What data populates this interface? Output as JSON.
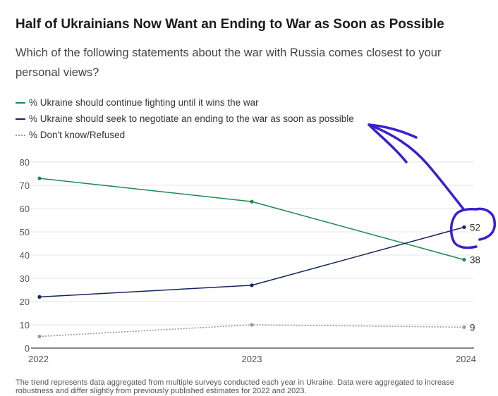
{
  "header": {
    "title": "Half of Ukrainians Now Want an Ending to War as Soon as Possible",
    "subtitle": "Which of the following statements about the war with Russia comes closest to your personal views?"
  },
  "footnote": "The trend represents data aggregated from multiple surveys conducted each year in Ukraine. Data were aggregated to increase robustness and differ slightly from previously published estimates for 2022 and 2023.",
  "chart_data": {
    "type": "line",
    "title": "Half of Ukrainians Now Want an Ending to War as Soon as Possible",
    "subtitle": "Which of the following statements about the war with Russia comes closest to your personal views?",
    "xlabel": "",
    "ylabel": "",
    "x": [
      "2022",
      "2023",
      "2024"
    ],
    "ylim": [
      0,
      80
    ],
    "yticks": [
      "0",
      "10",
      "20",
      "30",
      "40",
      "50",
      "60",
      "70",
      "80"
    ],
    "grid": true,
    "legend_position": "top-left",
    "series": [
      {
        "name": "% Ukraine should continue fighting until it wins the war",
        "values": [
          73,
          63,
          38
        ],
        "color": "#1a8c4e",
        "style": "solid",
        "end_label": "38"
      },
      {
        "name": "% Ukraine should seek to negotiate an ending to the war as soon as possible",
        "values": [
          22,
          27,
          52
        ],
        "color": "#14265e",
        "style": "solid",
        "end_label": "52"
      },
      {
        "name": "% Don't know/Refused",
        "values": [
          5,
          10,
          9
        ],
        "color": "#999999",
        "style": "dotted",
        "end_label": "9"
      }
    ],
    "annotation": {
      "kind": "handwritten circle and arrow",
      "color": "#3a1fd0",
      "target": "52"
    }
  }
}
